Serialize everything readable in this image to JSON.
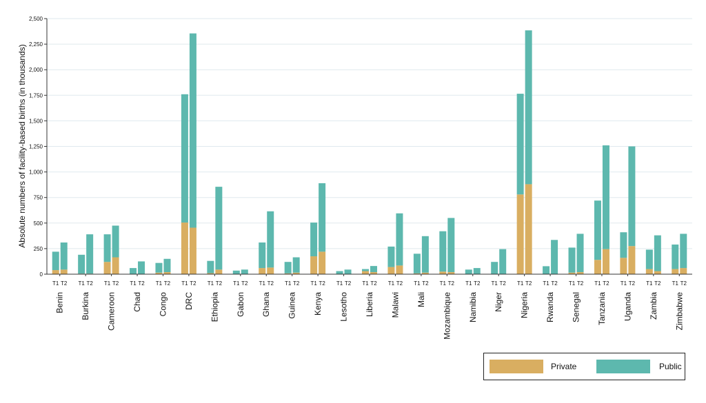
{
  "chart_data": {
    "type": "bar",
    "subtype": "stacked-grouped",
    "ylabel": "Absolute numbers of facility-based births (in thousands)",
    "xlabel": "",
    "ylim": [
      0,
      2500
    ],
    "yticks": [
      0,
      250,
      500,
      750,
      1000,
      1250,
      1500,
      1750,
      2000,
      2250,
      2500
    ],
    "ytick_labels": [
      "0",
      "250",
      "500",
      "750",
      "1,000",
      "1,250",
      "1,500",
      "1,750",
      "2,000",
      "2,250",
      "2,500"
    ],
    "grid": "horizontal",
    "period_labels": [
      "T1",
      "T2"
    ],
    "categories": [
      "Benin",
      "Burkina",
      "Cameroon",
      "Chad",
      "Congo",
      "DRC",
      "Ethiopia",
      "Gabon",
      "Ghana",
      "Guinea",
      "Kenya",
      "Lesotho",
      "Liberia",
      "Malawi",
      "Mali",
      "Mozambique",
      "Namibia",
      "Niger",
      "Nigeria",
      "Rwanda",
      "Senegal",
      "Tanzania",
      "Uganda",
      "Zambia",
      "Zimbabwe"
    ],
    "series": [
      {
        "name": "Private",
        "color": "#d9ae61",
        "T1": [
          40,
          5,
          120,
          3,
          15,
          505,
          10,
          3,
          60,
          8,
          175,
          2,
          30,
          70,
          8,
          25,
          3,
          3,
          780,
          3,
          15,
          140,
          160,
          50,
          50
        ],
        "T2": [
          45,
          5,
          165,
          3,
          20,
          455,
          45,
          3,
          65,
          15,
          220,
          3,
          20,
          85,
          15,
          20,
          3,
          3,
          880,
          3,
          20,
          245,
          275,
          30,
          60
        ]
      },
      {
        "name": "Public",
        "color": "#5db8ae",
        "T1": [
          180,
          185,
          270,
          57,
          95,
          1255,
          120,
          32,
          250,
          112,
          330,
          28,
          20,
          200,
          192,
          395,
          42,
          117,
          985,
          75,
          245,
          580,
          250,
          190,
          240
        ],
        "T2": [
          265,
          385,
          310,
          122,
          130,
          1900,
          810,
          42,
          550,
          150,
          670,
          42,
          60,
          510,
          357,
          530,
          57,
          242,
          1505,
          332,
          375,
          1015,
          975,
          350,
          335
        ]
      }
    ],
    "legend": {
      "position": "bottom-right",
      "items": [
        "Private",
        "Public"
      ]
    }
  }
}
